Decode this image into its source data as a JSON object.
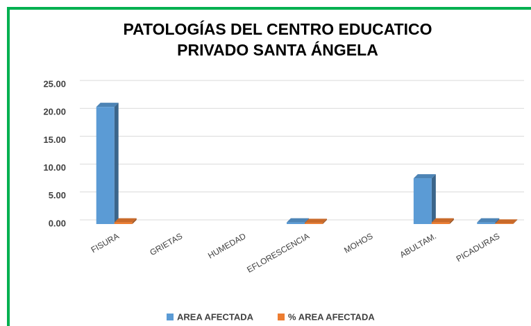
{
  "chart_data": {
    "type": "bar3d",
    "title": [
      "PATOLOGÍAS DEL CENTRO EDUCATICO",
      "PRIVADO SANTA ÁNGELA"
    ],
    "categories": [
      "FISURA",
      "GRIETAS",
      "HUMEDAD",
      "EFLORESCENCIA",
      "MOHOS",
      "ABULTAM.",
      "PICADURAS"
    ],
    "series": [
      {
        "name": "AREA AFECTADA",
        "color": "#5b9bd5",
        "values": [
          21.0,
          0,
          0,
          0.3,
          0,
          8.2,
          0.3
        ]
      },
      {
        "name": "% AREA  AFECTADA",
        "color": "#ed7d31",
        "values": [
          0.3,
          0,
          0,
          0.2,
          0,
          0.3,
          0.1
        ]
      }
    ],
    "ylim": [
      0,
      25
    ],
    "yticks": [
      {
        "value": 0,
        "label": "0.00"
      },
      {
        "value": 5,
        "label": "5.00"
      },
      {
        "value": 10,
        "label": "10.00"
      },
      {
        "value": 15,
        "label": "15.00"
      },
      {
        "value": 20,
        "label": "20.00"
      },
      {
        "value": 25,
        "label": "25.00"
      }
    ],
    "grid": true,
    "legend": "bottom"
  }
}
